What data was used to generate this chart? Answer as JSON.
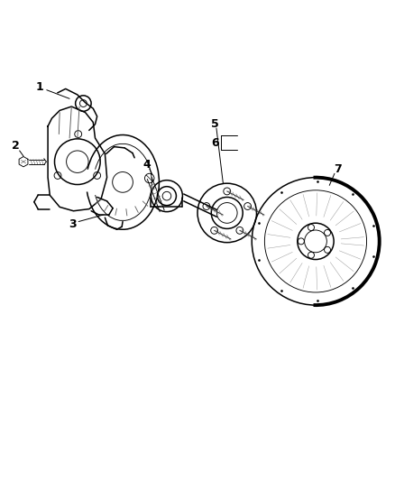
{
  "title": "",
  "background_color": "#ffffff",
  "line_color": "#000000",
  "label_color": "#000000",
  "figsize": [
    4.38,
    5.33
  ],
  "dpi": 100
}
